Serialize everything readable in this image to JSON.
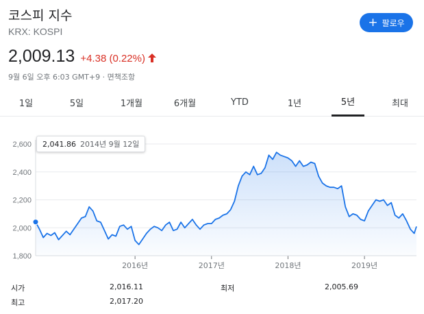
{
  "header": {
    "title": "코스피 지수",
    "subtitle": "KRX: KOSPI",
    "follow_label": "팔로우",
    "follow_icon": "plus-icon",
    "accent_color": "#1a73e8"
  },
  "quote": {
    "price": "2,009.13",
    "change": "+4.38 (0.22%)",
    "direction": "up",
    "change_color": "#d93025",
    "meta": "9월 6일 오후 6:03 GMT+9 · 면책조항"
  },
  "tabs": [
    {
      "label": "1일",
      "active": false
    },
    {
      "label": "5일",
      "active": false
    },
    {
      "label": "1개월",
      "active": false
    },
    {
      "label": "6개월",
      "active": false
    },
    {
      "label": "YTD",
      "active": false
    },
    {
      "label": "1년",
      "active": false
    },
    {
      "label": "5년",
      "active": true
    },
    {
      "label": "최대",
      "active": false
    }
  ],
  "chart_data": {
    "type": "area",
    "title": "",
    "xlabel": "",
    "ylabel": "",
    "ylim": [
      1800,
      2600
    ],
    "y_ticks": [
      "1,800",
      "2,000",
      "2,200",
      "2,400",
      "2,600"
    ],
    "x_ticks": [
      {
        "label": "2016년",
        "t": 2016.0
      },
      {
        "label": "2017년",
        "t": 2017.0
      },
      {
        "label": "2018년",
        "t": 2018.0
      },
      {
        "label": "2019년",
        "t": 2019.0
      }
    ],
    "xlim": [
      2014.7,
      2019.68
    ],
    "grid": true,
    "line_color": "#1a73e8",
    "tooltip": {
      "value": "2,041.86",
      "date": "2014년 9월 12일"
    },
    "series": [
      {
        "x": [
          2014.7,
          2014.75,
          2014.8,
          2014.85,
          2014.9,
          2014.95,
          2015.0,
          2015.05,
          2015.1,
          2015.15,
          2015.2,
          2015.25,
          2015.3,
          2015.35,
          2015.4,
          2015.45,
          2015.5,
          2015.55,
          2015.6,
          2015.65,
          2015.7,
          2015.75,
          2015.8,
          2015.85,
          2015.9,
          2015.95,
          2016.0,
          2016.05,
          2016.1,
          2016.15,
          2016.2,
          2016.25,
          2016.3,
          2016.35,
          2016.4,
          2016.45,
          2016.5,
          2016.55,
          2016.6,
          2016.65,
          2016.7,
          2016.75,
          2016.8,
          2016.85,
          2016.9,
          2016.95,
          2017.0,
          2017.05,
          2017.1,
          2017.15,
          2017.2,
          2017.25,
          2017.3,
          2017.35,
          2017.4,
          2017.45,
          2017.5,
          2017.55,
          2017.6,
          2017.65,
          2017.7,
          2017.75,
          2017.8,
          2017.85,
          2017.9,
          2017.95,
          2018.0,
          2018.05,
          2018.1,
          2018.15,
          2018.2,
          2018.25,
          2018.3,
          2018.35,
          2018.4,
          2018.45,
          2018.5,
          2018.55,
          2018.6,
          2018.65,
          2018.7,
          2018.75,
          2018.8,
          2018.85,
          2018.9,
          2018.95,
          2019.0,
          2019.05,
          2019.1,
          2019.15,
          2019.2,
          2019.25,
          2019.3,
          2019.35,
          2019.4,
          2019.45,
          2019.5,
          2019.55,
          2019.6,
          2019.65,
          2019.68
        ],
        "y": [
          2041.86,
          1990,
          1930,
          1960,
          1945,
          1965,
          1915,
          1945,
          1975,
          1950,
          1990,
          2030,
          2070,
          2080,
          2150,
          2120,
          2050,
          2040,
          1980,
          1920,
          1950,
          1940,
          2010,
          2020,
          1990,
          2010,
          1910,
          1880,
          1920,
          1960,
          1990,
          2010,
          2000,
          1980,
          2020,
          2040,
          1980,
          1990,
          2040,
          2000,
          2030,
          2060,
          2020,
          1990,
          2020,
          2030,
          2030,
          2060,
          2070,
          2090,
          2100,
          2130,
          2190,
          2300,
          2370,
          2400,
          2380,
          2440,
          2380,
          2390,
          2430,
          2520,
          2490,
          2540,
          2520,
          2510,
          2500,
          2480,
          2440,
          2480,
          2440,
          2450,
          2470,
          2460,
          2370,
          2320,
          2300,
          2290,
          2290,
          2280,
          2300,
          2150,
          2080,
          2100,
          2090,
          2060,
          2050,
          2120,
          2160,
          2200,
          2190,
          2200,
          2160,
          2180,
          2090,
          2070,
          2100,
          2050,
          1990,
          1960,
          2009
        ]
      }
    ]
  },
  "stats": [
    {
      "label": "시가",
      "value": "2,016.11",
      "label2": "최저",
      "value2": "2,005.69"
    },
    {
      "label": "최고",
      "value": "2,017.20",
      "label2": "",
      "value2": ""
    }
  ]
}
